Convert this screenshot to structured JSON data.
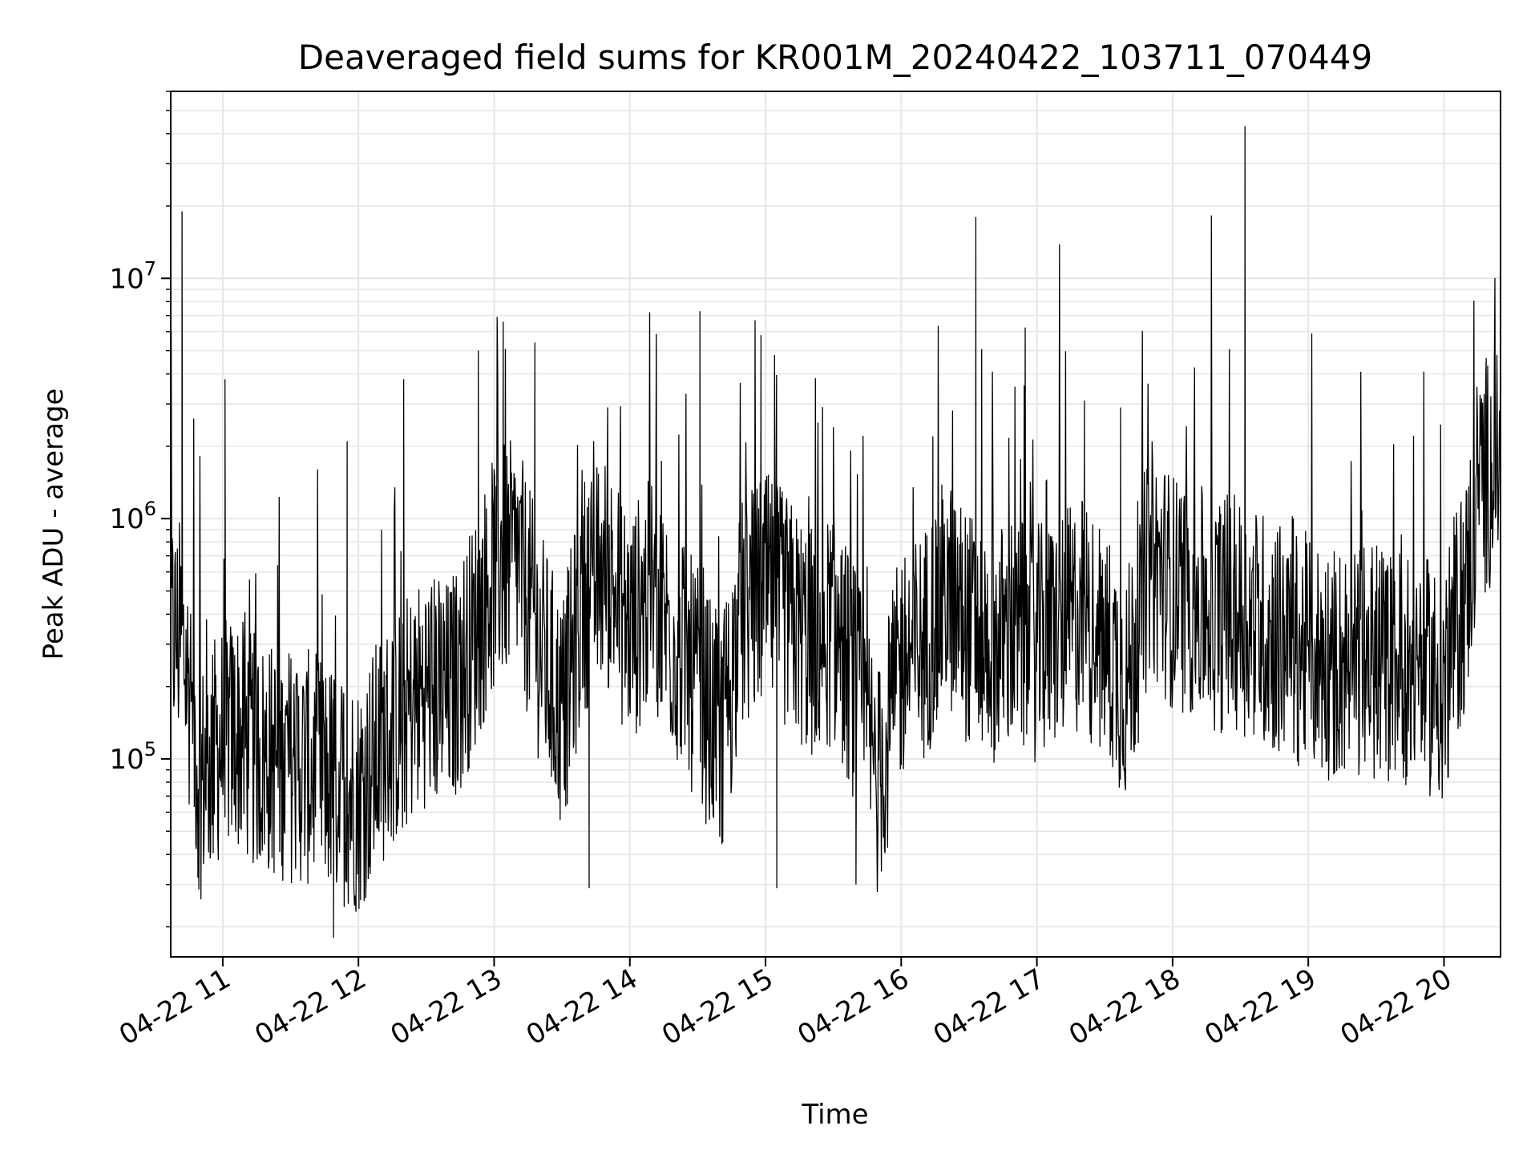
{
  "chart_data": {
    "type": "line",
    "title": "Deaveraged field sums for KR001M_20240422_103711_070449",
    "xlabel": "Time",
    "ylabel": "Peak ADU - average",
    "y_scale": "log",
    "x_range": [
      "2024-04-22 10:37",
      "2024-04-22 20:25"
    ],
    "ylim": [
      15000,
      60000000
    ],
    "x_ticks": [
      {
        "t": "2024-04-22 11:00",
        "label": "04-22 11"
      },
      {
        "t": "2024-04-22 12:00",
        "label": "04-22 12"
      },
      {
        "t": "2024-04-22 13:00",
        "label": "04-22 13"
      },
      {
        "t": "2024-04-22 14:00",
        "label": "04-22 14"
      },
      {
        "t": "2024-04-22 15:00",
        "label": "04-22 15"
      },
      {
        "t": "2024-04-22 16:00",
        "label": "04-22 16"
      },
      {
        "t": "2024-04-22 17:00",
        "label": "04-22 17"
      },
      {
        "t": "2024-04-22 18:00",
        "label": "04-22 18"
      },
      {
        "t": "2024-04-22 19:00",
        "label": "04-22 19"
      },
      {
        "t": "2024-04-22 20:00",
        "label": "04-22 20"
      }
    ],
    "y_ticks": [
      {
        "value": 100000,
        "base": "10",
        "exp": "5"
      },
      {
        "value": 1000000,
        "base": "10",
        "exp": "6"
      },
      {
        "value": 10000000,
        "base": "10",
        "exp": "7"
      }
    ],
    "grid": true,
    "line_color": "#000000",
    "grid_color": "#e6e6e6",
    "series": [
      {
        "x": [
          "2024-04-22 10:37",
          "2024-04-22 10:42",
          "2024-04-22 10:45",
          "2024-04-22 10:50",
          "2024-04-22 10:55",
          "2024-04-22 11:00",
          "2024-04-22 11:06",
          "2024-04-22 11:12",
          "2024-04-22 11:20",
          "2024-04-22 11:30",
          "2024-04-22 11:40",
          "2024-04-22 11:50",
          "2024-04-22 12:00",
          "2024-04-22 12:10",
          "2024-04-22 12:20",
          "2024-04-22 12:30",
          "2024-04-22 12:40",
          "2024-04-22 12:50",
          "2024-04-22 13:00",
          "2024-04-22 13:10",
          "2024-04-22 13:20",
          "2024-04-22 13:30",
          "2024-04-22 13:40",
          "2024-04-22 13:50",
          "2024-04-22 14:00",
          "2024-04-22 14:10",
          "2024-04-22 14:20",
          "2024-04-22 14:30",
          "2024-04-22 14:40",
          "2024-04-22 14:50",
          "2024-04-22 15:00",
          "2024-04-22 15:10",
          "2024-04-22 15:20",
          "2024-04-22 15:30",
          "2024-04-22 15:40",
          "2024-04-22 15:50",
          "2024-04-22 16:00",
          "2024-04-22 16:10",
          "2024-04-22 16:20",
          "2024-04-22 16:30",
          "2024-04-22 16:40",
          "2024-04-22 16:50",
          "2024-04-22 17:00",
          "2024-04-22 17:10",
          "2024-04-22 17:20",
          "2024-04-22 17:30",
          "2024-04-22 17:40",
          "2024-04-22 17:50",
          "2024-04-22 18:00",
          "2024-04-22 18:10",
          "2024-04-22 18:20",
          "2024-04-22 18:30",
          "2024-04-22 18:40",
          "2024-04-22 18:50",
          "2024-04-22 19:00",
          "2024-04-22 19:10",
          "2024-04-22 19:20",
          "2024-04-22 19:30",
          "2024-04-22 19:40",
          "2024-04-22 19:50",
          "2024-04-22 20:00",
          "2024-04-22 20:05",
          "2024-04-22 20:10",
          "2024-04-22 20:15",
          "2024-04-22 20:20",
          "2024-04-22 20:25"
        ],
        "values": [
          350000,
          300000,
          200000,
          80000,
          100000,
          120000,
          130000,
          110000,
          100000,
          95000,
          90000,
          80000,
          70000,
          110000,
          150000,
          200000,
          180000,
          300000,
          600000,
          700000,
          300000,
          150000,
          500000,
          600000,
          350000,
          500000,
          300000,
          200000,
          120000,
          400000,
          500000,
          400000,
          300000,
          350000,
          200000,
          80000,
          250000,
          300000,
          500000,
          350000,
          300000,
          330000,
          300000,
          350000,
          400000,
          300000,
          200000,
          700000,
          500000,
          450000,
          400000,
          400000,
          350000,
          300000,
          280000,
          250000,
          260000,
          250000,
          250000,
          230000,
          200000,
          350000,
          500000,
          1400000,
          1600000,
          1800000
        ]
      }
    ],
    "spikes": [
      {
        "x": "2024-04-22 10:42",
        "value": 19000000
      },
      {
        "x": "2024-04-22 11:01",
        "value": 3800000
      },
      {
        "x": "2024-04-22 11:55",
        "value": 2100000
      },
      {
        "x": "2024-04-22 12:20",
        "value": 3800000
      },
      {
        "x": "2024-04-22 12:53",
        "value": 5000000
      },
      {
        "x": "2024-04-22 13:04",
        "value": 6600000
      },
      {
        "x": "2024-04-22 13:18",
        "value": 5400000
      },
      {
        "x": "2024-04-22 13:44",
        "value": 2100000
      },
      {
        "x": "2024-04-22 14:31",
        "value": 7300000
      },
      {
        "x": "2024-04-22 14:58",
        "value": 5800000
      },
      {
        "x": "2024-04-22 15:04",
        "value": 4800000
      },
      {
        "x": "2024-04-22 15:30",
        "value": 2400000
      },
      {
        "x": "2024-04-22 16:14",
        "value": 2200000
      },
      {
        "x": "2024-04-22 16:33",
        "value": 18000000
      },
      {
        "x": "2024-04-22 17:21",
        "value": 3100000
      },
      {
        "x": "2024-04-22 17:37",
        "value": 2900000
      },
      {
        "x": "2024-04-22 18:32",
        "value": 43000000
      },
      {
        "x": "2024-04-22 11:49",
        "value": 18000
      },
      {
        "x": "2024-04-22 13:42",
        "value": 29000
      },
      {
        "x": "2024-04-22 15:05",
        "value": 29000
      },
      {
        "x": "2024-04-22 15:40",
        "value": 30000
      },
      {
        "x": "2024-04-22 10:49",
        "value": 32000
      }
    ]
  }
}
